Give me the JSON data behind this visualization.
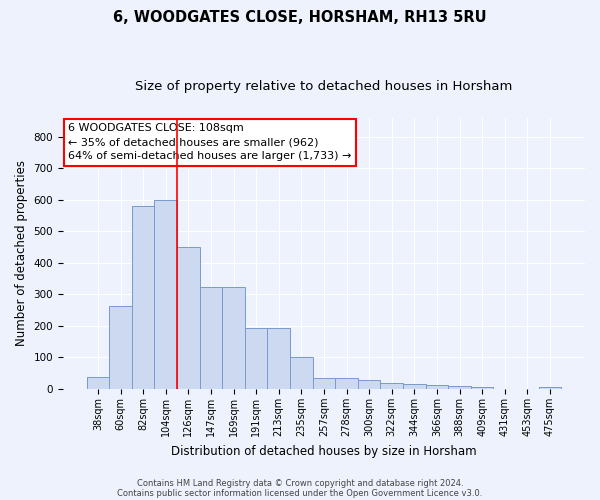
{
  "title1": "6, WOODGATES CLOSE, HORSHAM, RH13 5RU",
  "title2": "Size of property relative to detached houses in Horsham",
  "xlabel": "Distribution of detached houses by size in Horsham",
  "ylabel": "Number of detached properties",
  "categories": [
    "38sqm",
    "60sqm",
    "82sqm",
    "104sqm",
    "126sqm",
    "147sqm",
    "169sqm",
    "191sqm",
    "213sqm",
    "235sqm",
    "257sqm",
    "278sqm",
    "300sqm",
    "322sqm",
    "344sqm",
    "366sqm",
    "388sqm",
    "409sqm",
    "431sqm",
    "453sqm",
    "475sqm"
  ],
  "values": [
    38,
    263,
    580,
    600,
    450,
    325,
    325,
    193,
    193,
    100,
    35,
    35,
    30,
    18,
    15,
    13,
    10,
    5,
    0,
    0,
    7
  ],
  "bar_color": "#ccd9f0",
  "bar_edge_color": "#7799cc",
  "vline_x": 3.5,
  "vline_color": "red",
  "annotation_line1": "6 WOODGATES CLOSE: 108sqm",
  "annotation_line2": "← 35% of detached houses are smaller (962)",
  "annotation_line3": "64% of semi-detached houses are larger (1,733) →",
  "annotation_box_color": "white",
  "annotation_box_edge_color": "red",
  "ylim": [
    0,
    860
  ],
  "yticks": [
    0,
    100,
    200,
    300,
    400,
    500,
    600,
    700,
    800
  ],
  "footer1": "Contains HM Land Registry data © Crown copyright and database right 2024.",
  "footer2": "Contains public sector information licensed under the Open Government Licence v3.0.",
  "bg_color": "#eef2fc",
  "grid_color": "#ffffff",
  "title_fontsize": 10.5,
  "subtitle_fontsize": 9.5,
  "tick_fontsize": 7,
  "ylabel_fontsize": 8.5,
  "xlabel_fontsize": 8.5,
  "annotation_fontsize": 8,
  "footer_fontsize": 6
}
